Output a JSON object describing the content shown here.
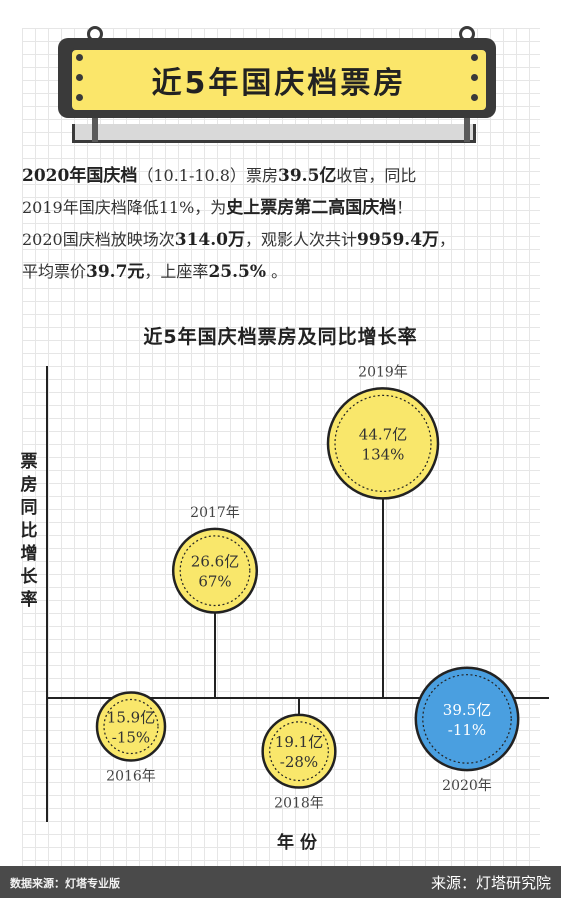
{
  "banner": {
    "title": "近5年国庆档票房"
  },
  "summary": {
    "line1": [
      {
        "t": "2020年国庆档",
        "b": true
      },
      {
        "t": "（10.1-10.8）票房",
        "b": false
      },
      {
        "t": "39.5亿",
        "b": true
      },
      {
        "t": "收官，同比",
        "b": false
      }
    ],
    "line2": [
      {
        "t": "2019年国庆档降低11%，为",
        "b": false
      },
      {
        "t": "史上票房第二高国庆档",
        "b": true
      },
      {
        "t": "！",
        "b": false
      }
    ],
    "line3": [
      {
        "t": "2020国庆档放映场次",
        "b": false
      },
      {
        "t": "314.0万",
        "b": true
      },
      {
        "t": "，观影人次共计",
        "b": false
      },
      {
        "t": "9959.4万",
        "b": true
      },
      {
        "t": "，",
        "b": false
      }
    ],
    "line4": [
      {
        "t": "平均票价",
        "b": false
      },
      {
        "t": "39.7元",
        "b": true
      },
      {
        "t": "，上座率",
        "b": false
      },
      {
        "t": "25.5%",
        "b": true
      },
      {
        "t": " 。",
        "b": false
      }
    ]
  },
  "chart_data": {
    "type": "scatter",
    "title": "近5年国庆档票房及同比增长率",
    "xlabel": "年 份",
    "ylabel": "票房同比增长率",
    "points": [
      {
        "year": "2016年",
        "box_office": "15.9亿",
        "box_office_value": 15.9,
        "growth": "-15%",
        "growth_value": -15,
        "color": "#f9e76b"
      },
      {
        "year": "2017年",
        "box_office": "26.6亿",
        "box_office_value": 26.6,
        "growth": "67%",
        "growth_value": 67,
        "color": "#f9e76b"
      },
      {
        "year": "2018年",
        "box_office": "19.1亿",
        "box_office_value": 19.1,
        "growth": "-28%",
        "growth_value": -28,
        "color": "#f9e76b"
      },
      {
        "year": "2019年",
        "box_office": "44.7亿",
        "box_office_value": 44.7,
        "growth": "134%",
        "growth_value": 134,
        "color": "#f9e76b"
      },
      {
        "year": "2020年",
        "box_office": "39.5亿",
        "box_office_value": 39.5,
        "growth": "-11%",
        "growth_value": -11,
        "color": "#4a9fe0"
      }
    ]
  },
  "footer": {
    "source_left": "数据来源：灯塔专业版",
    "source_right": "来源：灯塔研究院"
  }
}
